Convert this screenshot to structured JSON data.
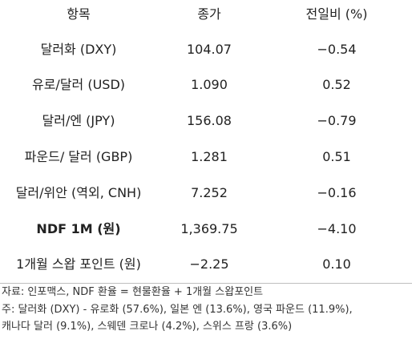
{
  "table": {
    "header": {
      "item": "항목",
      "close": "종가",
      "change": "전일비 (%)"
    },
    "rows": [
      {
        "item": "달러화 (DXY)",
        "close": "104.07",
        "change": "−0.54"
      },
      {
        "item": "유로/달러 (USD)",
        "close": "1.090",
        "change": "0.52"
      },
      {
        "item": "달러/엔 (JPY)",
        "close": "156.08",
        "change": "−0.79"
      },
      {
        "item": "파운드/ 달러 (GBP)",
        "close": "1.281",
        "change": "0.51"
      },
      {
        "item": "달러/위안 (역외, CNH)",
        "close": "7.252",
        "change": "−0.16"
      },
      {
        "item": "NDF 1M (원)",
        "close": "1,369.75",
        "change": "−4.10"
      },
      {
        "item": "1개월 스왑 포인트 (원)",
        "close": "−2.25",
        "change": "0.10"
      }
    ]
  },
  "notes": {
    "source": "자료: 인포맥스, NDF 환율 = 현물환율 + 1개월 스왑포인트",
    "note_line1": "주: 달러화 (DXY) - 유로화 (57.6%), 일본 엔 (13.6%), 영국 파운드 (11.9%),",
    "note_line2": "캐나다 달러 (9.1%), 스웨덴 크로나 (4.2%), 스위스 프랑 (3.6%)"
  }
}
